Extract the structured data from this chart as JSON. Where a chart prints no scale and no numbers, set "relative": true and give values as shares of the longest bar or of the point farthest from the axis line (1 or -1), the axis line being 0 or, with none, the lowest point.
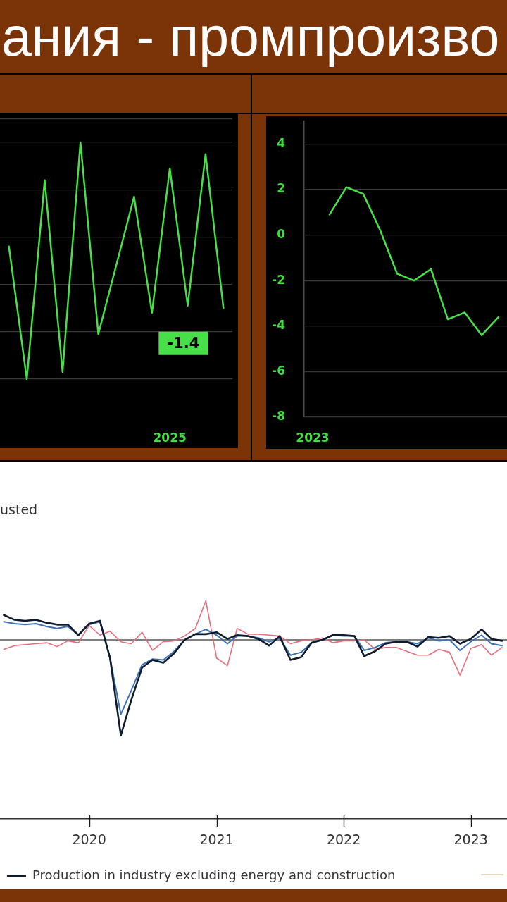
{
  "chart_data": [
    {
      "type": "line",
      "title": "ания - промпроизво",
      "categories": [
        null,
        null,
        null,
        null,
        null,
        null,
        null,
        null,
        null,
        null,
        null,
        null,
        null
      ],
      "series": [
        {
          "color": "#48e048",
          "values": [
            0.56,
            0,
            0.84,
            0.03,
            1,
            0.19,
            0.48,
            0.77,
            0.28,
            0.89,
            0.31,
            0.95,
            0.3
          ]
        }
      ],
      "relative": true,
      "grid": "y",
      "annotations": [
        "-1.4",
        "2025"
      ]
    },
    {
      "type": "line",
      "categories": [
        "2023",
        null,
        null,
        null,
        null,
        null,
        null,
        null,
        null,
        null,
        null,
        null
      ],
      "series": [
        {
          "color": "#48e048",
          "values": [
            null,
            0.9,
            2.1,
            1.8,
            0.2,
            -1.7,
            -2.0,
            -1.5,
            -3.7,
            -3.4,
            -4.4,
            -3.6
          ]
        }
      ],
      "ylim": [
        -8,
        5
      ],
      "yticks": [
        -8,
        -6,
        -4,
        -2,
        0,
        2,
        4
      ],
      "grid": "y"
    },
    {
      "type": "line",
      "subtitle": "usted",
      "x": [
        "2019-05",
        "2019-06",
        "2019-07",
        "2019-08",
        "2019-09",
        "2019-10",
        "2019-11",
        "2019-12",
        "2020-01",
        "2020-02",
        "2020-03",
        "2020-04",
        "2020-05",
        "2020-06",
        "2020-07",
        "2020-08",
        "2020-09",
        "2020-10",
        "2020-11",
        "2020-12",
        "2021-01",
        "2021-02",
        "2021-03",
        "2021-04",
        "2021-05",
        "2021-06",
        "2021-07",
        "2021-08",
        "2021-09",
        "2021-10",
        "2021-11",
        "2021-12",
        "2022-01",
        "2022-02",
        "2022-03",
        "2022-04",
        "2022-05",
        "2022-06",
        "2022-07",
        "2022-08",
        "2022-09",
        "2022-10",
        "2022-11",
        "2022-12",
        "2023-01",
        "2023-02",
        "2023-03",
        "2023-04"
      ],
      "series": [
        {
          "name": "Production in industry excluding energy and construction",
          "color": "#0f1c2e",
          "values": [
            0.26,
            0.21,
            0.2,
            0.21,
            0.18,
            0.16,
            0.16,
            0.05,
            0.17,
            0.2,
            -0.19,
            -1,
            -0.63,
            -0.29,
            -0.21,
            -0.24,
            -0.14,
            0,
            0.06,
            0.06,
            0.08,
            0.01,
            0.05,
            0.04,
            0.01,
            -0.06,
            0.04,
            -0.21,
            -0.18,
            -0.03,
            0.0,
            0.05,
            0.05,
            0.04,
            -0.17,
            -0.12,
            -0.04,
            -0.02,
            -0.02,
            -0.07,
            0.03,
            0.02,
            0.04,
            -0.04,
            0.01,
            0.11,
            0.01,
            -0.01
          ]
        },
        {
          "color": "#3d73b4",
          "values": [
            0.19,
            0.17,
            0.16,
            0.17,
            0.14,
            0.12,
            0.14,
            0.05,
            0.16,
            0.19,
            -0.19,
            -0.78,
            -0.53,
            -0.26,
            -0.2,
            -0.21,
            -0.12,
            0,
            0.06,
            0.11,
            0.05,
            -0.04,
            0.04,
            0.04,
            0.02,
            -0.02,
            0.02,
            -0.16,
            -0.13,
            -0.03,
            0.0,
            0.05,
            0.04,
            0.04,
            -0.11,
            -0.08,
            -0.03,
            -0.02,
            -0.02,
            -0.04,
            0.02,
            -0.01,
            0.0,
            -0.11,
            -0.02,
            0.05,
            -0.04,
            -0.06
          ]
        },
        {
          "color": "#e4707d",
          "values": [
            -0.1,
            -0.06,
            -0.05,
            -0.04,
            -0.03,
            -0.07,
            -0.01,
            -0.03,
            0.15,
            0.05,
            0.09,
            -0.02,
            -0.04,
            0.08,
            -0.11,
            -0.02,
            -0.01,
            0.04,
            0.12,
            0.41,
            -0.19,
            -0.27,
            0.12,
            0.06,
            0.06,
            0.05,
            0.04,
            -0.04,
            -0.01,
            0.0,
            0.02,
            -0.03,
            -0.01,
            -0.01,
            0.0,
            -0.1,
            -0.08,
            -0.08,
            -0.12,
            -0.16,
            -0.16,
            -0.1,
            -0.13,
            -0.37,
            -0.09,
            -0.05,
            -0.16,
            -0.08
          ]
        }
      ],
      "relative": true,
      "xlim": [
        "2019-04-20",
        "2023-04-15"
      ],
      "xticks": [
        "2020",
        "2021",
        "2022",
        "2023"
      ],
      "ref_lines": [
        {
          "axis": "y",
          "value": 0,
          "color": "#555555"
        }
      ],
      "legend": "bottom left"
    }
  ]
}
